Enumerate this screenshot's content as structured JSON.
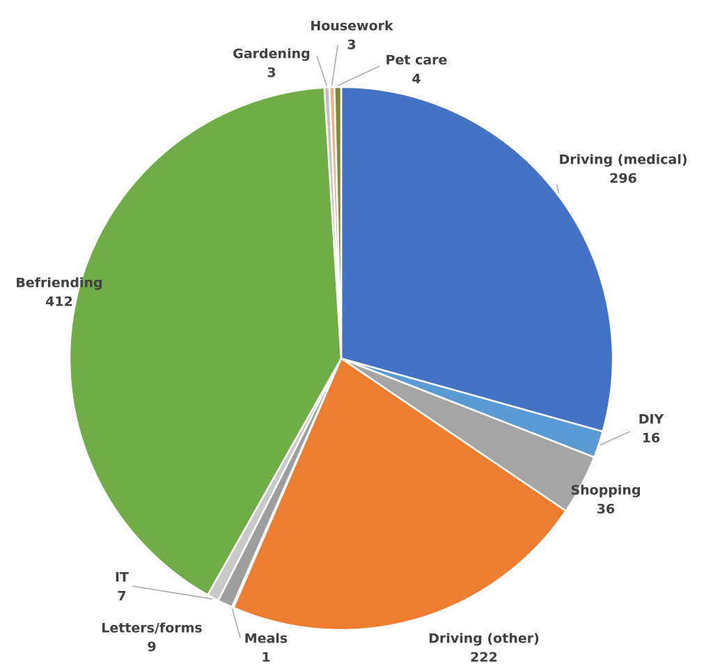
{
  "chart_data": {
    "type": "pie",
    "categories": [
      "Driving (medical)",
      "DIY",
      "Shopping",
      "Driving (other)",
      "Meals",
      "Letters/forms",
      "IT",
      "Befriending",
      "Gardening",
      "Housework",
      "Pet care"
    ],
    "values": [
      296,
      16,
      36,
      222,
      1,
      9,
      7,
      412,
      3,
      3,
      4
    ],
    "colors": [
      "#4472c4",
      "#5b9bd5",
      "#a5a5a5",
      "#ed7d31",
      "#548235",
      "#9e9e9e",
      "#c9c9c9",
      "#70ad47",
      "#bfbfbf",
      "#f4b183",
      "#7f8a3a"
    ]
  }
}
